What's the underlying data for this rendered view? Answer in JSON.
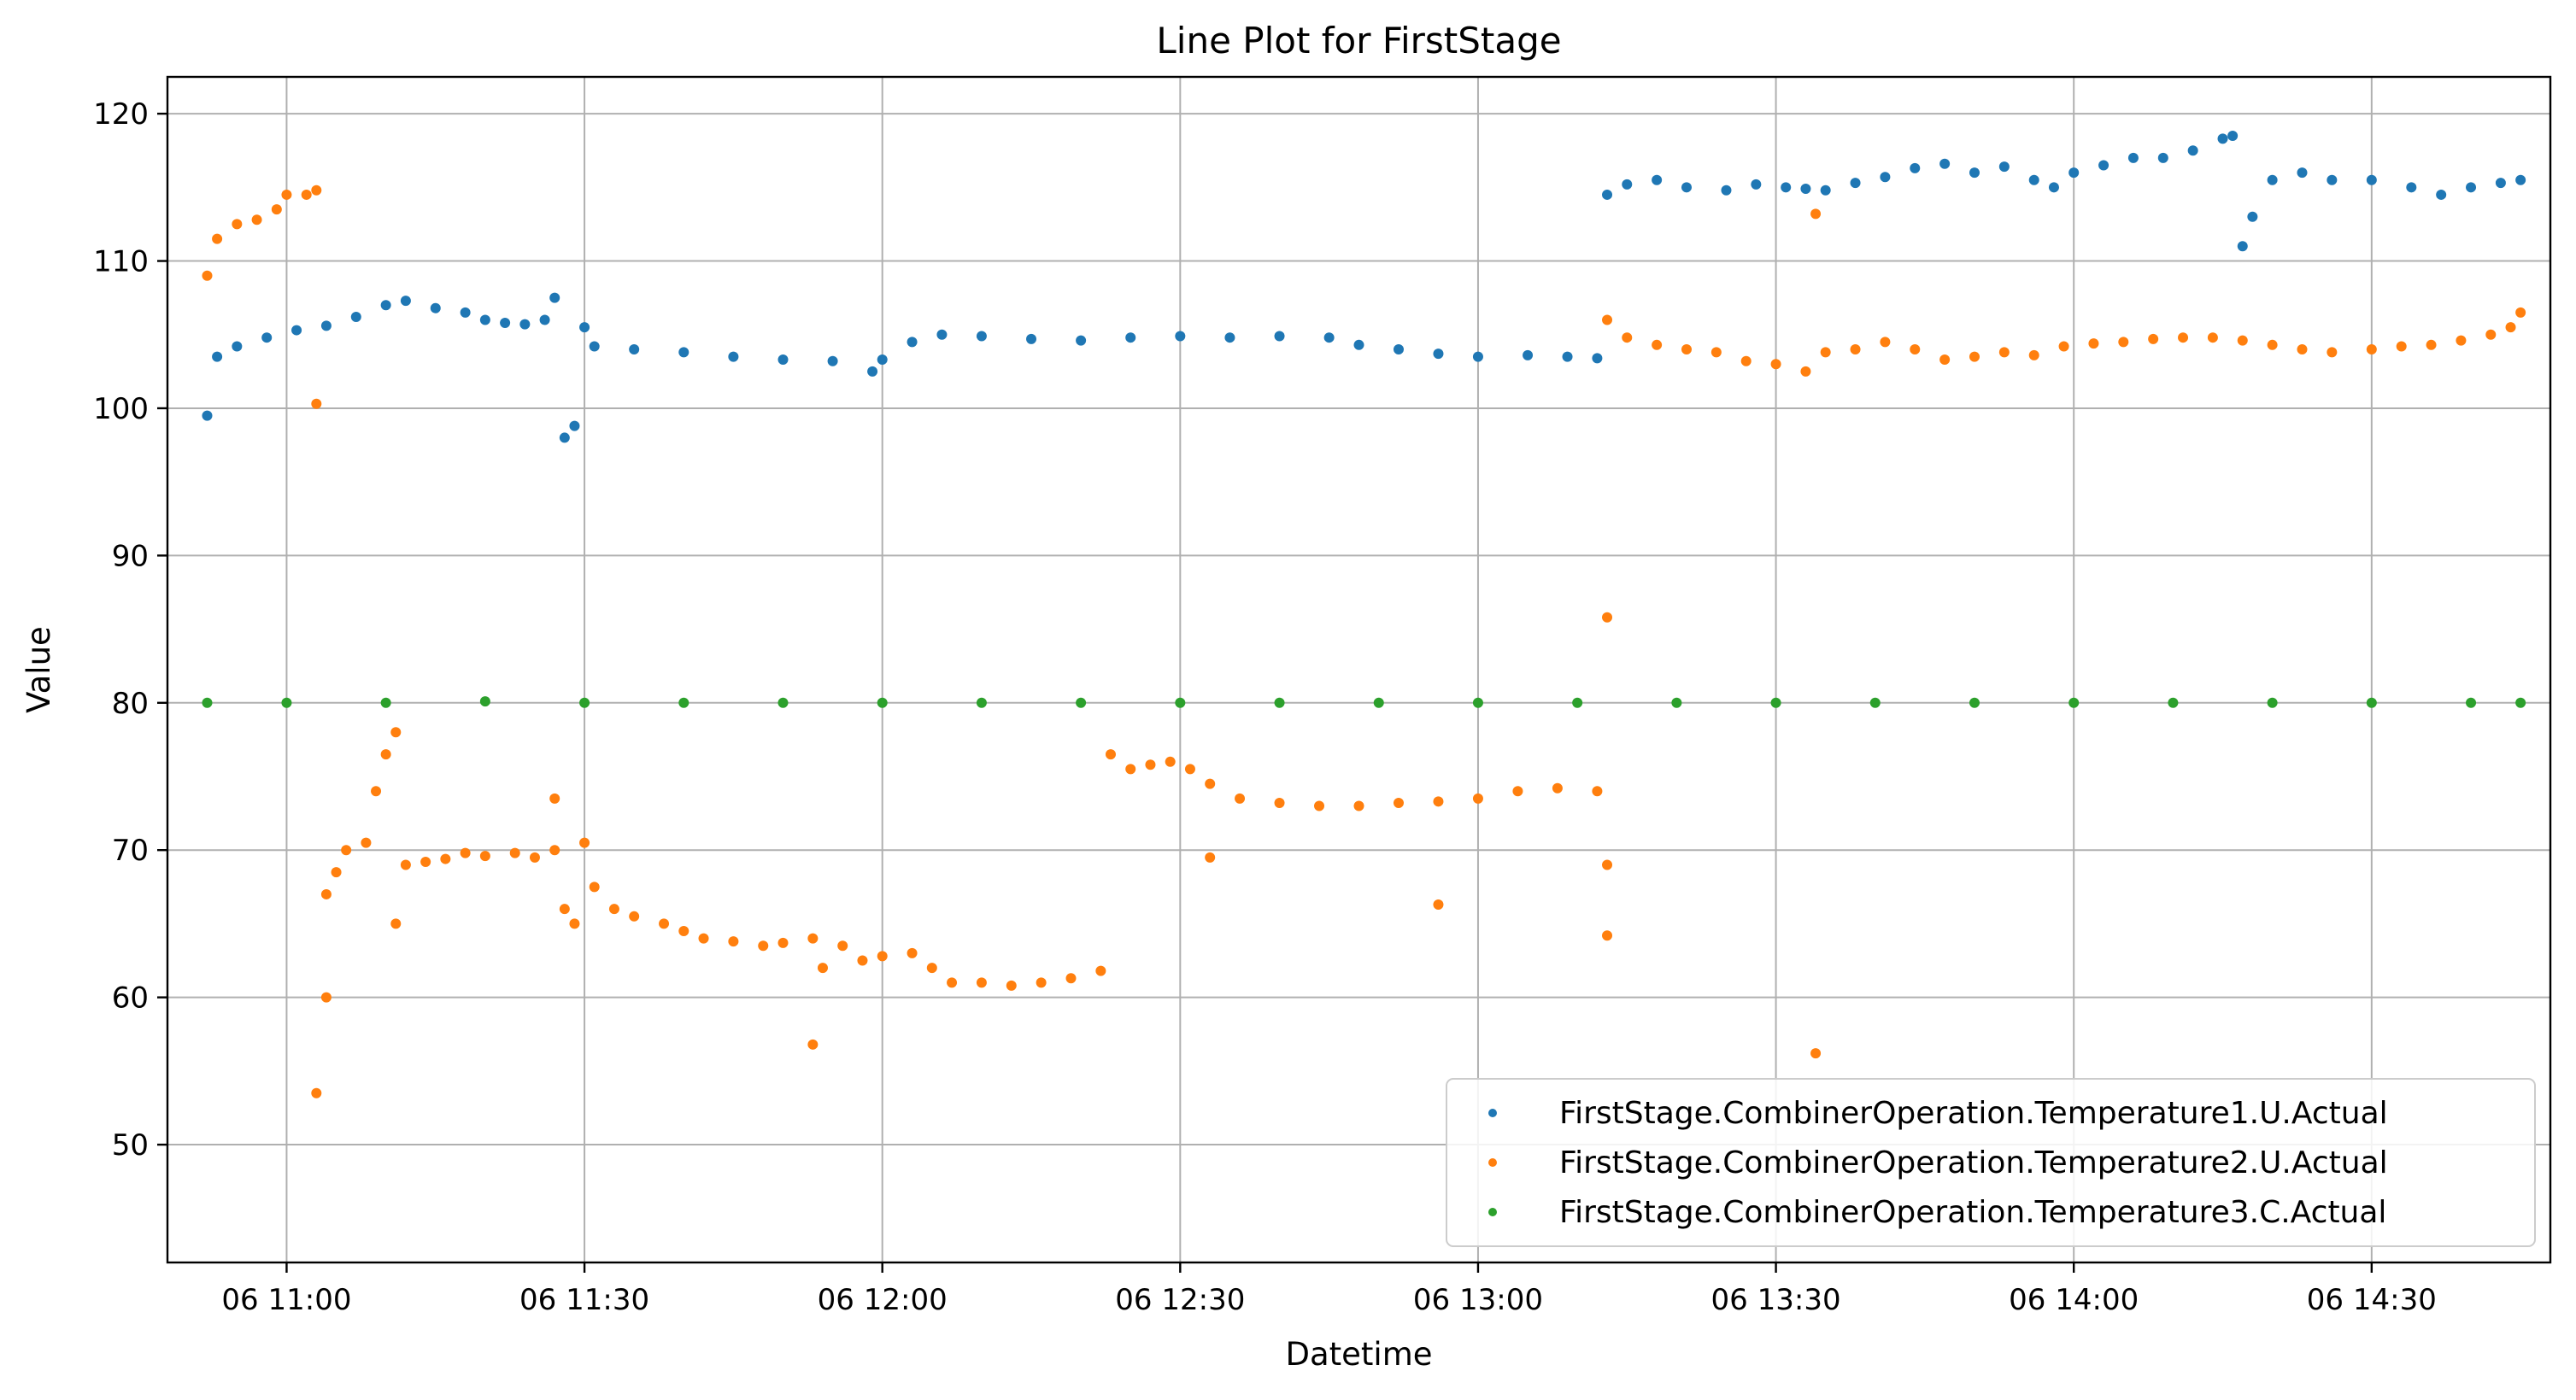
{
  "chart_data": {
    "type": "scatter",
    "title": "Line Plot for FirstStage",
    "xlabel": "Datetime",
    "ylabel": "Value",
    "xlim": [
      "06 10:48",
      "06 14:48"
    ],
    "ylim": [
      42,
      122.5
    ],
    "grid": true,
    "legend_position": "lower-right",
    "x_ticks": [
      {
        "t": "06 11:00",
        "label": "06 11:00"
      },
      {
        "t": "06 11:30",
        "label": "06 11:30"
      },
      {
        "t": "06 12:00",
        "label": "06 12:00"
      },
      {
        "t": "06 12:30",
        "label": "06 12:30"
      },
      {
        "t": "06 13:00",
        "label": "06 13:00"
      },
      {
        "t": "06 13:30",
        "label": "06 13:30"
      },
      {
        "t": "06 14:00",
        "label": "06 14:00"
      },
      {
        "t": "06 14:30",
        "label": "06 14:30"
      }
    ],
    "y_ticks": [
      50,
      60,
      70,
      80,
      90,
      100,
      110,
      120
    ],
    "series": [
      {
        "name": "FirstStage.CombinerOperation.Temperature1.U.Actual",
        "color": "#1f77b4",
        "points": [
          [
            "06 10:52",
            99.5
          ],
          [
            "06 10:53",
            103.5
          ],
          [
            "06 10:55",
            104.2
          ],
          [
            "06 10:58",
            104.8
          ],
          [
            "06 11:01",
            105.3
          ],
          [
            "06 11:04",
            105.6
          ],
          [
            "06 11:07",
            106.2
          ],
          [
            "06 11:10",
            107.0
          ],
          [
            "06 11:12",
            107.3
          ],
          [
            "06 11:15",
            106.8
          ],
          [
            "06 11:18",
            106.5
          ],
          [
            "06 11:20",
            106.0
          ],
          [
            "06 11:22",
            105.8
          ],
          [
            "06 11:24",
            105.7
          ],
          [
            "06 11:26",
            106.0
          ],
          [
            "06 11:27",
            107.5
          ],
          [
            "06 11:28",
            98.0
          ],
          [
            "06 11:29",
            98.8
          ],
          [
            "06 11:30",
            105.5
          ],
          [
            "06 11:31",
            104.2
          ],
          [
            "06 11:35",
            104.0
          ],
          [
            "06 11:40",
            103.8
          ],
          [
            "06 11:45",
            103.5
          ],
          [
            "06 11:50",
            103.3
          ],
          [
            "06 11:55",
            103.2
          ],
          [
            "06 11:59",
            102.5
          ],
          [
            "06 12:00",
            103.3
          ],
          [
            "06 12:03",
            104.5
          ],
          [
            "06 12:06",
            105.0
          ],
          [
            "06 12:10",
            104.9
          ],
          [
            "06 12:15",
            104.7
          ],
          [
            "06 12:20",
            104.6
          ],
          [
            "06 12:25",
            104.8
          ],
          [
            "06 12:30",
            104.9
          ],
          [
            "06 12:35",
            104.8
          ],
          [
            "06 12:40",
            104.9
          ],
          [
            "06 12:45",
            104.8
          ],
          [
            "06 12:48",
            104.3
          ],
          [
            "06 12:52",
            104.0
          ],
          [
            "06 12:56",
            103.7
          ],
          [
            "06 13:00",
            103.5
          ],
          [
            "06 13:05",
            103.6
          ],
          [
            "06 13:09",
            103.5
          ],
          [
            "06 13:12",
            103.4
          ],
          [
            "06 13:13",
            114.5
          ],
          [
            "06 13:15",
            115.2
          ],
          [
            "06 13:18",
            115.5
          ],
          [
            "06 13:21",
            115.0
          ],
          [
            "06 13:25",
            114.8
          ],
          [
            "06 13:28",
            115.2
          ],
          [
            "06 13:31",
            115.0
          ],
          [
            "06 13:33",
            114.9
          ],
          [
            "06 13:35",
            114.8
          ],
          [
            "06 13:38",
            115.3
          ],
          [
            "06 13:41",
            115.7
          ],
          [
            "06 13:44",
            116.3
          ],
          [
            "06 13:47",
            116.6
          ],
          [
            "06 13:50",
            116.0
          ],
          [
            "06 13:53",
            116.4
          ],
          [
            "06 13:56",
            115.5
          ],
          [
            "06 13:58",
            115.0
          ],
          [
            "06 14:00",
            116.0
          ],
          [
            "06 14:03",
            116.5
          ],
          [
            "06 14:06",
            117.0
          ],
          [
            "06 14:09",
            117.0
          ],
          [
            "06 14:12",
            117.5
          ],
          [
            "06 14:15",
            118.3
          ],
          [
            "06 14:16",
            118.5
          ],
          [
            "06 14:17",
            111.0
          ],
          [
            "06 14:18",
            113.0
          ],
          [
            "06 14:20",
            115.5
          ],
          [
            "06 14:23",
            116.0
          ],
          [
            "06 14:26",
            115.5
          ],
          [
            "06 14:30",
            115.5
          ],
          [
            "06 14:34",
            115.0
          ],
          [
            "06 14:37",
            114.5
          ],
          [
            "06 14:40",
            115.0
          ],
          [
            "06 14:43",
            115.3
          ],
          [
            "06 14:45",
            115.5
          ]
        ]
      },
      {
        "name": "FirstStage.CombinerOperation.Temperature2.U.Actual",
        "color": "#ff7f0e",
        "points": [
          [
            "06 10:52",
            109.0
          ],
          [
            "06 10:53",
            111.5
          ],
          [
            "06 10:55",
            112.5
          ],
          [
            "06 10:57",
            112.8
          ],
          [
            "06 10:59",
            113.5
          ],
          [
            "06 11:00",
            114.5
          ],
          [
            "06 11:02",
            114.5
          ],
          [
            "06 11:03",
            114.8
          ],
          [
            "06 11:03",
            100.3
          ],
          [
            "06 11:03",
            53.5
          ],
          [
            "06 11:04",
            60.0
          ],
          [
            "06 11:04",
            67.0
          ],
          [
            "06 11:05",
            68.5
          ],
          [
            "06 11:06",
            70.0
          ],
          [
            "06 11:08",
            70.5
          ],
          [
            "06 11:09",
            74.0
          ],
          [
            "06 11:10",
            76.5
          ],
          [
            "06 11:11",
            78.0
          ],
          [
            "06 11:11",
            65.0
          ],
          [
            "06 11:12",
            69.0
          ],
          [
            "06 11:14",
            69.2
          ],
          [
            "06 11:16",
            69.4
          ],
          [
            "06 11:18",
            69.8
          ],
          [
            "06 11:20",
            69.6
          ],
          [
            "06 11:23",
            69.8
          ],
          [
            "06 11:25",
            69.5
          ],
          [
            "06 11:27",
            70.0
          ],
          [
            "06 11:27",
            73.5
          ],
          [
            "06 11:28",
            66.0
          ],
          [
            "06 11:29",
            65.0
          ],
          [
            "06 11:30",
            70.5
          ],
          [
            "06 11:31",
            67.5
          ],
          [
            "06 11:33",
            66.0
          ],
          [
            "06 11:35",
            65.5
          ],
          [
            "06 11:38",
            65.0
          ],
          [
            "06 11:40",
            64.5
          ],
          [
            "06 11:42",
            64.0
          ],
          [
            "06 11:45",
            63.8
          ],
          [
            "06 11:48",
            63.5
          ],
          [
            "06 11:50",
            63.7
          ],
          [
            "06 11:53",
            64.0
          ],
          [
            "06 11:53",
            56.8
          ],
          [
            "06 11:54",
            62.0
          ],
          [
            "06 11:56",
            63.5
          ],
          [
            "06 11:58",
            62.5
          ],
          [
            "06 12:00",
            62.8
          ],
          [
            "06 12:03",
            63.0
          ],
          [
            "06 12:05",
            62.0
          ],
          [
            "06 12:07",
            61.0
          ],
          [
            "06 12:10",
            61.0
          ],
          [
            "06 12:13",
            60.8
          ],
          [
            "06 12:16",
            61.0
          ],
          [
            "06 12:19",
            61.3
          ],
          [
            "06 12:22",
            61.8
          ],
          [
            "06 12:23",
            76.5
          ],
          [
            "06 12:25",
            75.5
          ],
          [
            "06 12:27",
            75.8
          ],
          [
            "06 12:29",
            76.0
          ],
          [
            "06 12:31",
            75.5
          ],
          [
            "06 12:33",
            74.5
          ],
          [
            "06 12:33",
            69.5
          ],
          [
            "06 12:36",
            73.5
          ],
          [
            "06 12:40",
            73.2
          ],
          [
            "06 12:44",
            73.0
          ],
          [
            "06 12:48",
            73.0
          ],
          [
            "06 12:52",
            73.2
          ],
          [
            "06 12:56",
            73.3
          ],
          [
            "06 12:56",
            66.3
          ],
          [
            "06 13:00",
            73.5
          ],
          [
            "06 13:04",
            74.0
          ],
          [
            "06 13:08",
            74.2
          ],
          [
            "06 13:12",
            74.0
          ],
          [
            "06 13:13",
            69.0
          ],
          [
            "06 13:13",
            64.2
          ],
          [
            "06 13:13",
            85.8
          ],
          [
            "06 13:13",
            106.0
          ],
          [
            "06 13:15",
            104.8
          ],
          [
            "06 13:18",
            104.3
          ],
          [
            "06 13:21",
            104.0
          ],
          [
            "06 13:24",
            103.8
          ],
          [
            "06 13:27",
            103.2
          ],
          [
            "06 13:30",
            103.0
          ],
          [
            "06 13:33",
            102.5
          ],
          [
            "06 13:34",
            113.2
          ],
          [
            "06 13:34",
            56.2
          ],
          [
            "06 13:35",
            103.8
          ],
          [
            "06 13:38",
            104.0
          ],
          [
            "06 13:41",
            104.5
          ],
          [
            "06 13:44",
            104.0
          ],
          [
            "06 13:47",
            103.3
          ],
          [
            "06 13:50",
            103.5
          ],
          [
            "06 13:53",
            103.8
          ],
          [
            "06 13:56",
            103.6
          ],
          [
            "06 13:59",
            104.2
          ],
          [
            "06 14:02",
            104.4
          ],
          [
            "06 14:05",
            104.5
          ],
          [
            "06 14:08",
            104.7
          ],
          [
            "06 14:11",
            104.8
          ],
          [
            "06 14:14",
            104.8
          ],
          [
            "06 14:17",
            104.6
          ],
          [
            "06 14:20",
            104.3
          ],
          [
            "06 14:23",
            104.0
          ],
          [
            "06 14:26",
            103.8
          ],
          [
            "06 14:30",
            104.0
          ],
          [
            "06 14:33",
            104.2
          ],
          [
            "06 14:36",
            104.3
          ],
          [
            "06 14:39",
            104.6
          ],
          [
            "06 14:42",
            105.0
          ],
          [
            "06 14:44",
            105.5
          ],
          [
            "06 14:45",
            106.5
          ]
        ]
      },
      {
        "name": "FirstStage.CombinerOperation.Temperature3.C.Actual",
        "color": "#2ca02c",
        "points": [
          [
            "06 10:52",
            80.0
          ],
          [
            "06 11:00",
            80.0
          ],
          [
            "06 11:10",
            80.0
          ],
          [
            "06 11:20",
            80.1
          ],
          [
            "06 11:30",
            80.0
          ],
          [
            "06 11:40",
            80.0
          ],
          [
            "06 11:50",
            80.0
          ],
          [
            "06 12:00",
            80.0
          ],
          [
            "06 12:10",
            80.0
          ],
          [
            "06 12:20",
            80.0
          ],
          [
            "06 12:30",
            80.0
          ],
          [
            "06 12:40",
            80.0
          ],
          [
            "06 12:50",
            80.0
          ],
          [
            "06 13:00",
            80.0
          ],
          [
            "06 13:10",
            80.0
          ],
          [
            "06 13:20",
            80.0
          ],
          [
            "06 13:30",
            80.0
          ],
          [
            "06 13:40",
            80.0
          ],
          [
            "06 13:50",
            80.0
          ],
          [
            "06 14:00",
            80.0
          ],
          [
            "06 14:10",
            80.0
          ],
          [
            "06 14:20",
            80.0
          ],
          [
            "06 14:30",
            80.0
          ],
          [
            "06 14:40",
            80.0
          ],
          [
            "06 14:45",
            80.0
          ]
        ]
      }
    ]
  }
}
